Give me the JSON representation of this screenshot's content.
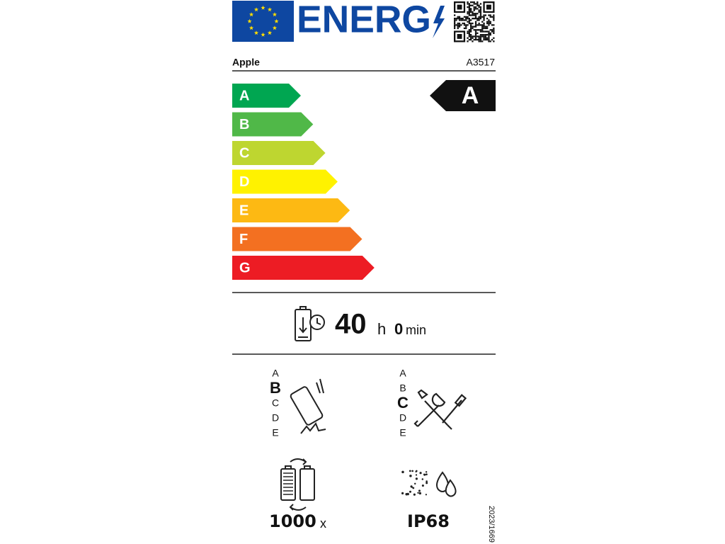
{
  "header": {
    "title": "ENERG",
    "supplier": "Apple",
    "model": "A3517"
  },
  "energy_scale": {
    "classes": [
      "A",
      "B",
      "C",
      "D",
      "E",
      "F",
      "G"
    ],
    "colors": [
      "#00a651",
      "#50b848",
      "#bed630",
      "#fff200",
      "#fdb913",
      "#f37021",
      "#ed1c24"
    ],
    "rating": "A"
  },
  "battery_endurance": {
    "hours": "40",
    "hours_unit": "h",
    "minutes": "0",
    "minutes_unit": "min"
  },
  "drop_resistance": {
    "scale": [
      "A",
      "B",
      "C",
      "D",
      "E"
    ],
    "class": "B"
  },
  "repairability": {
    "scale": [
      "A",
      "B",
      "C",
      "D",
      "E"
    ],
    "class": "C"
  },
  "battery_cycles": {
    "value": "1000",
    "unit": "x"
  },
  "ingress_protection": "IP68",
  "regulation": "2023/1669"
}
